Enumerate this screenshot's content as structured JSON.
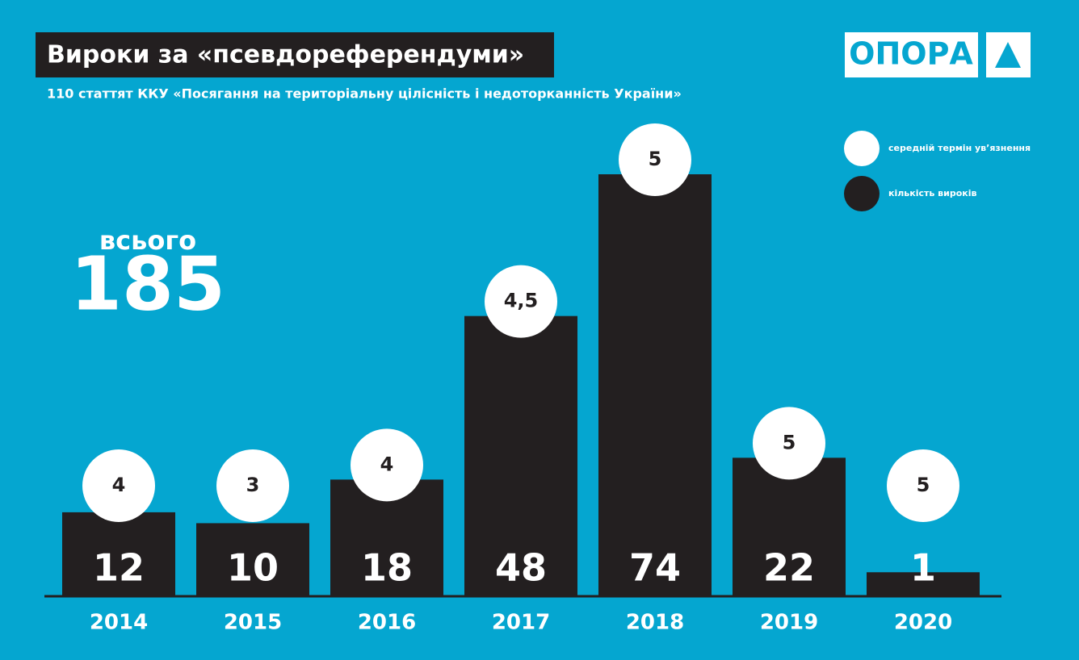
{
  "chart_data": {
    "type": "bar",
    "title": "Вироки за «псевдореферендуми»",
    "subtitle": "110 статтят ККУ «Посягання на територіальну цілісність і недоторканність України»",
    "logo": "ОПОРА",
    "total_label": "всього",
    "total": 185,
    "categories": [
      "2014",
      "2015",
      "2016",
      "2017",
      "2018",
      "2019",
      "2020"
    ],
    "series": [
      {
        "name": "середній термін ув’язнення",
        "color": "#ffffff",
        "values": [
          4,
          3,
          4,
          4.5,
          5,
          5,
          5
        ],
        "value_labels": [
          "4",
          "3",
          "4",
          "4,5",
          "5",
          "5",
          "5"
        ]
      },
      {
        "name": "кількість вироків",
        "color": "#231f20",
        "values": [
          12,
          10,
          18,
          48,
          74,
          22,
          1
        ]
      }
    ]
  }
}
